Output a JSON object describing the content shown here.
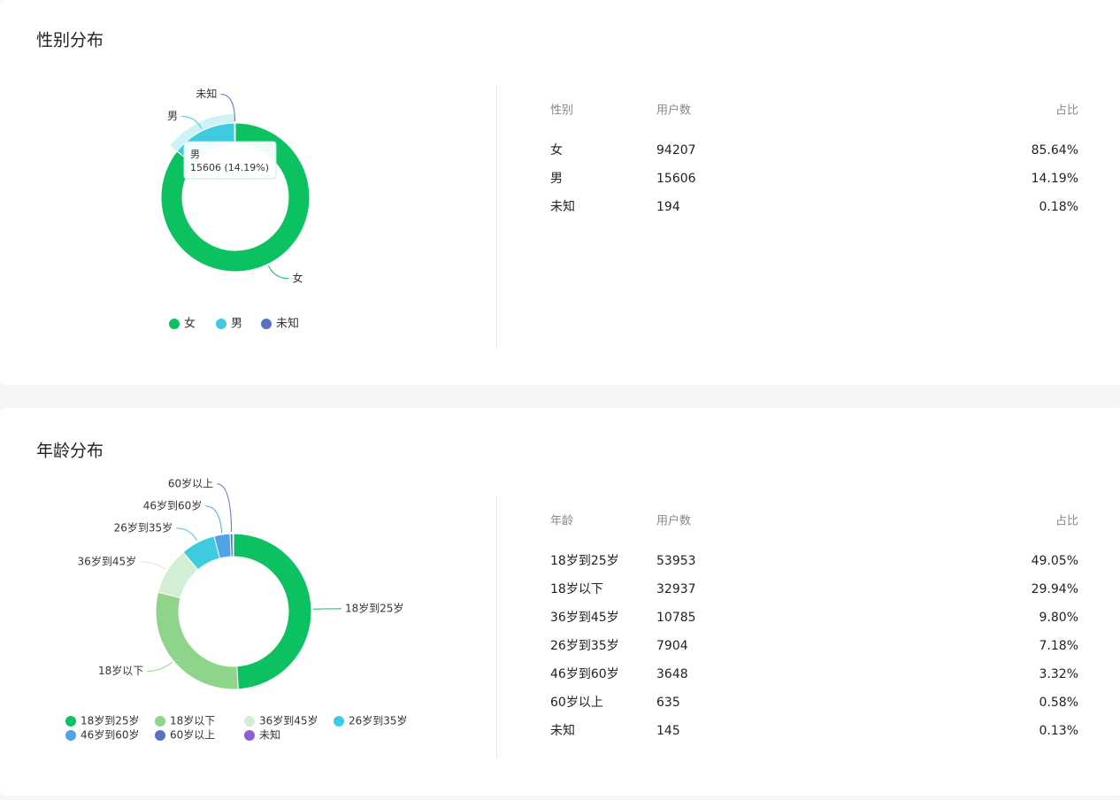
{
  "sections": [
    {
      "title": "性别分布"
    },
    {
      "title": "年龄分布"
    }
  ],
  "chart_data": [
    {
      "type": "pie",
      "categories": [
        "女",
        "男",
        "未知"
      ],
      "values": [
        94207,
        15606,
        194
      ],
      "colors": [
        "#0cc160",
        "#3ecbe0",
        "#5b6fc7"
      ],
      "tooltip": {
        "title": "男",
        "text": "15606 (14.19%)"
      }
    },
    {
      "type": "pie",
      "categories": [
        "18岁到25岁",
        "18岁以下",
        "36岁到45岁",
        "26岁到35岁",
        "46岁到60岁",
        "60岁以上",
        "未知"
      ],
      "values": [
        53953,
        32937,
        10785,
        7904,
        3648,
        635,
        145
      ],
      "colors": [
        "#0cc160",
        "#8ed48a",
        "#d2eed3",
        "#3ecbe0",
        "#4fa3e8",
        "#5b6fc7",
        "#8d5fd3"
      ]
    }
  ],
  "tables": [
    {
      "columns": [
        "性别",
        "用户数",
        "占比"
      ],
      "rows": [
        [
          "女",
          "94207",
          "85.64%"
        ],
        [
          "男",
          "15606",
          "14.19%"
        ],
        [
          "未知",
          "194",
          "0.18%"
        ]
      ]
    },
    {
      "columns": [
        "年龄",
        "用户数",
        "占比"
      ],
      "rows": [
        [
          "18岁到25岁",
          "53953",
          "49.05%"
        ],
        [
          "18岁以下",
          "32937",
          "29.94%"
        ],
        [
          "36岁到45岁",
          "10785",
          "9.80%"
        ],
        [
          "26岁到35岁",
          "7904",
          "7.18%"
        ],
        [
          "46岁到60岁",
          "3648",
          "3.32%"
        ],
        [
          "60岁以上",
          "635",
          "0.58%"
        ],
        [
          "未知",
          "145",
          "0.13%"
        ]
      ]
    }
  ]
}
